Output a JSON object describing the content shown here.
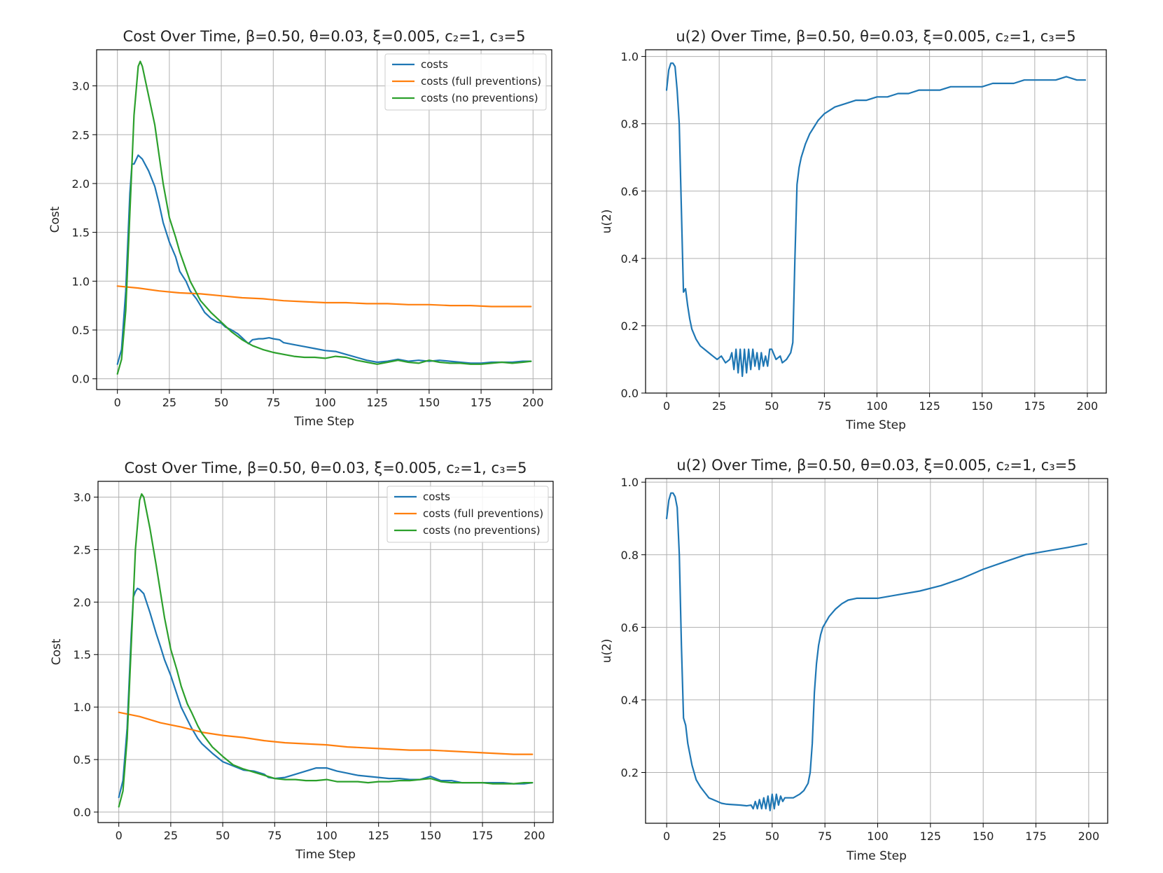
{
  "figure": {
    "background": "#ffffff"
  },
  "chart_data": [
    {
      "type": "line",
      "title": "Cost Over Time, β=0.50, θ=0.03, ξ=0.005, c₂=1, c₃=5",
      "xlabel": "Time Step",
      "ylabel": "Cost",
      "xlim": [
        -10,
        209
      ],
      "ylim": [
        -0.11,
        3.37
      ],
      "xticks": [
        0,
        25,
        50,
        75,
        100,
        125,
        150,
        175,
        200
      ],
      "yticks": [
        0.0,
        0.5,
        1.0,
        1.5,
        2.0,
        2.5,
        3.0
      ],
      "ytick_labels": [
        "0.0",
        "0.5",
        "1.0",
        "1.5",
        "2.0",
        "2.5",
        "3.0"
      ],
      "grid": true,
      "legend_position": "top-right",
      "series": [
        {
          "name": "costs",
          "color": "#1f77b4",
          "x": [
            0,
            2,
            4,
            6,
            7,
            8,
            10,
            12,
            15,
            18,
            20,
            22,
            25,
            28,
            30,
            33,
            35,
            38,
            40,
            42,
            45,
            48,
            50,
            52,
            55,
            58,
            60,
            63,
            65,
            68,
            70,
            73,
            75,
            78,
            80,
            85,
            90,
            95,
            100,
            105,
            110,
            115,
            120,
            125,
            130,
            135,
            140,
            145,
            150,
            155,
            160,
            165,
            170,
            175,
            180,
            185,
            190,
            195,
            199
          ],
          "y": [
            0.15,
            0.3,
            0.9,
            1.9,
            2.2,
            2.2,
            2.29,
            2.25,
            2.13,
            1.97,
            1.8,
            1.6,
            1.4,
            1.25,
            1.1,
            1.0,
            0.9,
            0.82,
            0.75,
            0.68,
            0.62,
            0.58,
            0.57,
            0.53,
            0.5,
            0.46,
            0.42,
            0.36,
            0.4,
            0.41,
            0.41,
            0.42,
            0.41,
            0.4,
            0.37,
            0.35,
            0.33,
            0.31,
            0.29,
            0.28,
            0.25,
            0.22,
            0.19,
            0.17,
            0.18,
            0.2,
            0.18,
            0.19,
            0.18,
            0.19,
            0.18,
            0.17,
            0.16,
            0.16,
            0.17,
            0.17,
            0.17,
            0.18,
            0.18
          ]
        },
        {
          "name": "costs (full preventions)",
          "color": "#ff7f0e",
          "x": [
            0,
            10,
            20,
            30,
            40,
            50,
            60,
            70,
            80,
            90,
            100,
            110,
            120,
            130,
            140,
            150,
            160,
            170,
            180,
            190,
            199
          ],
          "y": [
            0.95,
            0.93,
            0.9,
            0.88,
            0.87,
            0.85,
            0.83,
            0.82,
            0.8,
            0.79,
            0.78,
            0.78,
            0.77,
            0.77,
            0.76,
            0.76,
            0.75,
            0.75,
            0.74,
            0.74,
            0.74
          ]
        },
        {
          "name": "costs (no preventions)",
          "color": "#2ca02c",
          "x": [
            0,
            2,
            4,
            6,
            8,
            10,
            11,
            12,
            15,
            18,
            20,
            22,
            25,
            28,
            30,
            33,
            35,
            38,
            40,
            45,
            50,
            55,
            60,
            65,
            70,
            75,
            80,
            85,
            90,
            95,
            100,
            105,
            110,
            115,
            120,
            125,
            130,
            135,
            140,
            145,
            150,
            155,
            160,
            165,
            170,
            175,
            180,
            185,
            190,
            195,
            199
          ],
          "y": [
            0.05,
            0.2,
            0.7,
            1.7,
            2.7,
            3.2,
            3.25,
            3.2,
            2.9,
            2.6,
            2.3,
            2.0,
            1.65,
            1.45,
            1.3,
            1.12,
            1.0,
            0.88,
            0.8,
            0.68,
            0.58,
            0.48,
            0.4,
            0.34,
            0.3,
            0.27,
            0.25,
            0.23,
            0.22,
            0.22,
            0.21,
            0.23,
            0.22,
            0.19,
            0.17,
            0.15,
            0.17,
            0.19,
            0.17,
            0.16,
            0.19,
            0.17,
            0.16,
            0.16,
            0.15,
            0.15,
            0.16,
            0.17,
            0.16,
            0.17,
            0.18
          ]
        }
      ]
    },
    {
      "type": "line",
      "title": "u(2) Over Time, β=0.50, θ=0.03, ξ=0.005, c₂=1, c₃=5",
      "xlabel": "Time Step",
      "ylabel": "u(2)",
      "xlim": [
        -10,
        209
      ],
      "ylim": [
        0.0,
        1.02
      ],
      "xticks": [
        0,
        25,
        50,
        75,
        100,
        125,
        150,
        175,
        200
      ],
      "yticks": [
        0.0,
        0.2,
        0.4,
        0.6,
        0.8,
        1.0
      ],
      "ytick_labels": [
        "0.0",
        "0.2",
        "0.4",
        "0.6",
        "0.8",
        "1.0"
      ],
      "grid": true,
      "series": [
        {
          "color": "#1f77b4",
          "x": [
            0,
            1,
            2,
            3,
            4,
            5,
            6,
            7,
            8,
            9,
            10,
            11,
            12,
            14,
            16,
            18,
            20,
            22,
            24,
            26,
            28,
            30,
            31,
            32,
            33,
            34,
            35,
            36,
            37,
            38,
            39,
            40,
            41,
            42,
            43,
            44,
            45,
            46,
            47,
            48,
            49,
            50,
            52,
            54,
            55,
            57,
            59,
            60,
            61,
            62,
            63,
            64,
            66,
            68,
            70,
            72,
            75,
            80,
            85,
            90,
            95,
            100,
            105,
            110,
            115,
            120,
            125,
            130,
            135,
            140,
            145,
            150,
            155,
            160,
            165,
            170,
            175,
            180,
            185,
            190,
            195,
            199
          ],
          "y": [
            0.9,
            0.96,
            0.98,
            0.98,
            0.97,
            0.9,
            0.8,
            0.55,
            0.3,
            0.31,
            0.26,
            0.22,
            0.19,
            0.16,
            0.14,
            0.13,
            0.12,
            0.11,
            0.1,
            0.11,
            0.09,
            0.1,
            0.12,
            0.07,
            0.13,
            0.06,
            0.13,
            0.05,
            0.13,
            0.06,
            0.13,
            0.07,
            0.13,
            0.08,
            0.12,
            0.07,
            0.12,
            0.08,
            0.11,
            0.08,
            0.13,
            0.13,
            0.1,
            0.11,
            0.09,
            0.1,
            0.12,
            0.15,
            0.4,
            0.62,
            0.67,
            0.7,
            0.74,
            0.77,
            0.79,
            0.81,
            0.83,
            0.85,
            0.86,
            0.87,
            0.87,
            0.88,
            0.88,
            0.89,
            0.89,
            0.9,
            0.9,
            0.9,
            0.91,
            0.91,
            0.91,
            0.91,
            0.92,
            0.92,
            0.92,
            0.93,
            0.93,
            0.93,
            0.93,
            0.94,
            0.93,
            0.93
          ]
        }
      ]
    },
    {
      "type": "line",
      "title": "Cost Over Time, β=0.50, θ=0.03, ξ=0.005, c₂=1, c₃=5",
      "xlabel": "Time Step",
      "ylabel": "Cost",
      "xlim": [
        -10,
        209
      ],
      "ylim": [
        -0.1,
        3.15
      ],
      "xticks": [
        0,
        25,
        50,
        75,
        100,
        125,
        150,
        175,
        200
      ],
      "yticks": [
        0.0,
        0.5,
        1.0,
        1.5,
        2.0,
        2.5,
        3.0
      ],
      "ytick_labels": [
        "0.0",
        "0.5",
        "1.0",
        "1.5",
        "2.0",
        "2.5",
        "3.0"
      ],
      "grid": true,
      "legend_position": "top-right",
      "series": [
        {
          "name": "costs",
          "color": "#1f77b4",
          "x": [
            0,
            2,
            4,
            6,
            7,
            8,
            9,
            10,
            12,
            15,
            18,
            20,
            22,
            25,
            28,
            30,
            33,
            35,
            38,
            40,
            45,
            50,
            55,
            60,
            65,
            70,
            72,
            75,
            80,
            85,
            90,
            95,
            100,
            105,
            110,
            115,
            120,
            125,
            130,
            135,
            140,
            145,
            150,
            155,
            160,
            165,
            170,
            175,
            180,
            185,
            190,
            195,
            199
          ],
          "y": [
            0.14,
            0.3,
            0.8,
            1.7,
            2.05,
            2.1,
            2.13,
            2.12,
            2.08,
            1.9,
            1.7,
            1.58,
            1.45,
            1.3,
            1.12,
            1.0,
            0.88,
            0.8,
            0.7,
            0.65,
            0.56,
            0.48,
            0.44,
            0.4,
            0.39,
            0.36,
            0.33,
            0.32,
            0.33,
            0.36,
            0.39,
            0.42,
            0.42,
            0.39,
            0.37,
            0.35,
            0.34,
            0.33,
            0.32,
            0.32,
            0.31,
            0.31,
            0.34,
            0.3,
            0.3,
            0.28,
            0.28,
            0.28,
            0.28,
            0.28,
            0.27,
            0.27,
            0.28
          ]
        },
        {
          "name": "costs (full preventions)",
          "color": "#ff7f0e",
          "x": [
            0,
            10,
            20,
            30,
            40,
            50,
            60,
            70,
            80,
            90,
            100,
            110,
            120,
            130,
            140,
            150,
            160,
            170,
            180,
            190,
            199
          ],
          "y": [
            0.95,
            0.91,
            0.85,
            0.81,
            0.76,
            0.73,
            0.71,
            0.68,
            0.66,
            0.65,
            0.64,
            0.62,
            0.61,
            0.6,
            0.59,
            0.59,
            0.58,
            0.57,
            0.56,
            0.55,
            0.55
          ]
        },
        {
          "name": "costs (no preventions)",
          "color": "#2ca02c",
          "x": [
            0,
            2,
            4,
            6,
            8,
            10,
            11,
            12,
            15,
            18,
            20,
            22,
            25,
            28,
            30,
            33,
            35,
            38,
            40,
            45,
            50,
            55,
            60,
            65,
            70,
            75,
            80,
            85,
            90,
            95,
            100,
            105,
            110,
            115,
            120,
            125,
            130,
            135,
            140,
            145,
            150,
            155,
            160,
            165,
            170,
            175,
            180,
            185,
            190,
            195,
            199
          ],
          "y": [
            0.05,
            0.2,
            0.7,
            1.6,
            2.5,
            2.97,
            3.03,
            3.0,
            2.7,
            2.35,
            2.1,
            1.85,
            1.55,
            1.35,
            1.2,
            1.03,
            0.95,
            0.82,
            0.75,
            0.62,
            0.53,
            0.45,
            0.41,
            0.38,
            0.35,
            0.32,
            0.31,
            0.31,
            0.3,
            0.3,
            0.31,
            0.29,
            0.29,
            0.29,
            0.28,
            0.29,
            0.29,
            0.3,
            0.3,
            0.31,
            0.32,
            0.29,
            0.28,
            0.28,
            0.28,
            0.28,
            0.27,
            0.27,
            0.27,
            0.28,
            0.28
          ]
        }
      ]
    },
    {
      "type": "line",
      "title": "u(2) Over Time, β=0.50, θ=0.03, ξ=0.005, c₂=1, c₃=5",
      "xlabel": "Time Step",
      "ylabel": "u(2)",
      "xlim": [
        -10,
        209
      ],
      "ylim": [
        0.06,
        1.01
      ],
      "xticks": [
        0,
        25,
        50,
        75,
        100,
        125,
        150,
        175,
        200
      ],
      "yticks": [
        0.2,
        0.4,
        0.6,
        0.8,
        1.0
      ],
      "ytick_labels": [
        "0.2",
        "0.4",
        "0.6",
        "0.8",
        "1.0"
      ],
      "grid": true,
      "series": [
        {
          "color": "#1f77b4",
          "x": [
            0,
            1,
            2,
            3,
            4,
            5,
            6,
            7,
            8,
            9,
            10,
            11,
            12,
            14,
            16,
            18,
            20,
            22,
            24,
            26,
            28,
            30,
            35,
            38,
            40,
            41,
            42,
            43,
            44,
            45,
            46,
            47,
            48,
            49,
            50,
            51,
            52,
            53,
            54,
            55,
            56,
            58,
            60,
            63,
            65,
            67,
            68,
            69,
            70,
            71,
            72,
            73,
            74,
            75,
            77,
            80,
            83,
            86,
            90,
            95,
            100,
            105,
            110,
            120,
            130,
            140,
            150,
            160,
            170,
            180,
            190,
            199
          ],
          "y": [
            0.9,
            0.95,
            0.97,
            0.97,
            0.96,
            0.93,
            0.8,
            0.55,
            0.35,
            0.33,
            0.28,
            0.25,
            0.22,
            0.18,
            0.16,
            0.145,
            0.13,
            0.125,
            0.12,
            0.115,
            0.113,
            0.112,
            0.11,
            0.108,
            0.11,
            0.1,
            0.12,
            0.1,
            0.125,
            0.1,
            0.13,
            0.1,
            0.135,
            0.095,
            0.14,
            0.1,
            0.14,
            0.11,
            0.135,
            0.12,
            0.13,
            0.13,
            0.13,
            0.14,
            0.15,
            0.17,
            0.2,
            0.28,
            0.42,
            0.5,
            0.55,
            0.58,
            0.6,
            0.61,
            0.63,
            0.65,
            0.665,
            0.675,
            0.68,
            0.68,
            0.68,
            0.685,
            0.69,
            0.7,
            0.715,
            0.735,
            0.76,
            0.78,
            0.8,
            0.81,
            0.82,
            0.83
          ]
        }
      ]
    }
  ]
}
